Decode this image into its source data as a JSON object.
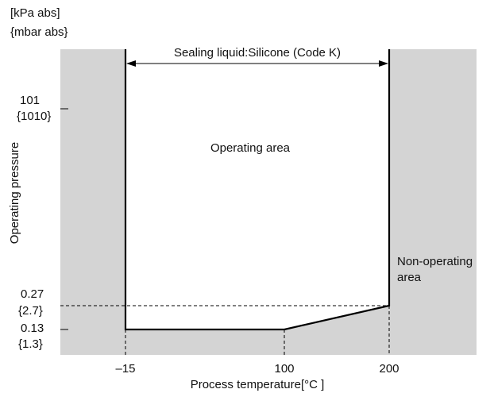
{
  "y_unit_lines": [
    "[kPa  abs]",
    "{mbar  abs}"
  ],
  "y_axis_title": "Operating  pressure",
  "x_axis_title": "Process temperature[°C ]",
  "sealing_liquid_label": "Sealing liquid:Silicone (Code K)",
  "operating_area_label": "Operating area",
  "non_operating_area_lines": [
    "Non-operating",
    "area"
  ],
  "y_ticks": [
    {
      "kpa": "101",
      "mbar": "{1010}"
    },
    {
      "kpa": "0.27",
      "mbar": "{2.7}"
    },
    {
      "kpa": "0.13",
      "mbar": "{1.3}"
    }
  ],
  "x_ticks": [
    "–15",
    "100",
    "200"
  ],
  "colors": {
    "non_operating_fill": "#d4d4d4",
    "operating_fill": "#ffffff",
    "line": "#000000"
  }
}
